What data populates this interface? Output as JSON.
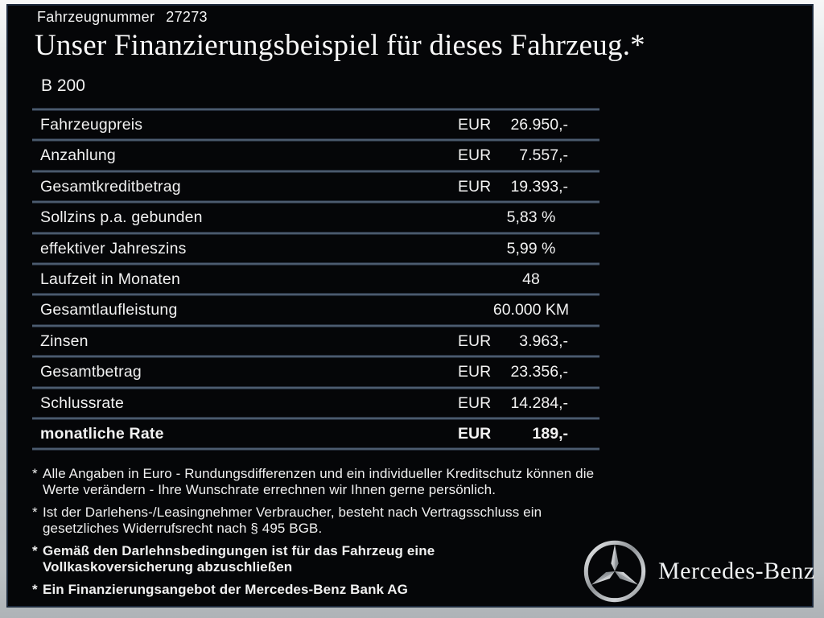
{
  "header": {
    "vehicle_number_label": "Fahrzeugnummer",
    "vehicle_number": "27273",
    "title": "Unser Finanzierungsbeispiel für dieses Fahrzeug.*",
    "model": "B 200"
  },
  "table": {
    "rows": [
      {
        "label": "Fahrzeugpreis",
        "currency": "EUR",
        "amount": "26.950,-",
        "align": "right",
        "bold": false
      },
      {
        "label": "Anzahlung",
        "currency": "EUR",
        "amount": "7.557,-",
        "align": "right",
        "bold": false
      },
      {
        "label": "Gesamtkreditbetrag",
        "currency": "EUR",
        "amount": "19.393,-",
        "align": "right",
        "bold": false
      },
      {
        "label": "Sollzins p.a. gebunden",
        "currency": "",
        "amount": "5,83 %",
        "align": "center",
        "bold": false
      },
      {
        "label": "effektiver Jahreszins",
        "currency": "",
        "amount": "5,99 %",
        "align": "center",
        "bold": false
      },
      {
        "label": "Laufzeit in Monaten",
        "currency": "",
        "amount": "48",
        "align": "center",
        "bold": false
      },
      {
        "label": "Gesamtlaufleistung",
        "currency": "",
        "amount": "60.000 KM",
        "align": "center",
        "bold": false
      },
      {
        "label": "Zinsen",
        "currency": "EUR",
        "amount": "3.963,-",
        "align": "right",
        "bold": false
      },
      {
        "label": "Gesamtbetrag",
        "currency": "EUR",
        "amount": "23.356,-",
        "align": "right",
        "bold": false
      },
      {
        "label": "Schlussrate",
        "currency": "EUR",
        "amount": "14.284,-",
        "align": "right",
        "bold": false
      },
      {
        "label": "monatliche Rate",
        "currency": "EUR",
        "amount": "189,-",
        "align": "right",
        "bold": true
      }
    ]
  },
  "footnotes": [
    {
      "marker": "*",
      "bold": false,
      "lines": [
        "Alle Angaben in Euro - Rundungsdifferenzen und ein individueller Kreditschutz können die",
        "Werte verändern - Ihre Wunschrate errechnen wir Ihnen gerne persönlich."
      ]
    },
    {
      "marker": "*",
      "bold": false,
      "lines": [
        "Ist der Darlehens-/Leasingnehmer Verbraucher, besteht nach Vertragsschluss ein",
        "gesetzliches Widerrufsrecht nach § 495 BGB."
      ]
    },
    {
      "marker": "*",
      "bold": true,
      "lines": [
        "Gemäß den Darlehnsbedingungen ist für das Fahrzeug eine",
        "Vollkaskoversicherung abzuschließen"
      ]
    },
    {
      "marker": "*",
      "bold": true,
      "lines": [
        "Ein Finanzierungsangebot der Mercedes-Benz Bank AG"
      ]
    }
  ],
  "brand": {
    "wordmark": "Mercedes-Benz",
    "logo_icon": "mercedes-star-icon"
  },
  "colors": {
    "page_bg": "#050608",
    "frame": "#cfd4d8",
    "separator": "#5f7288",
    "text": "#f2f2f2"
  }
}
